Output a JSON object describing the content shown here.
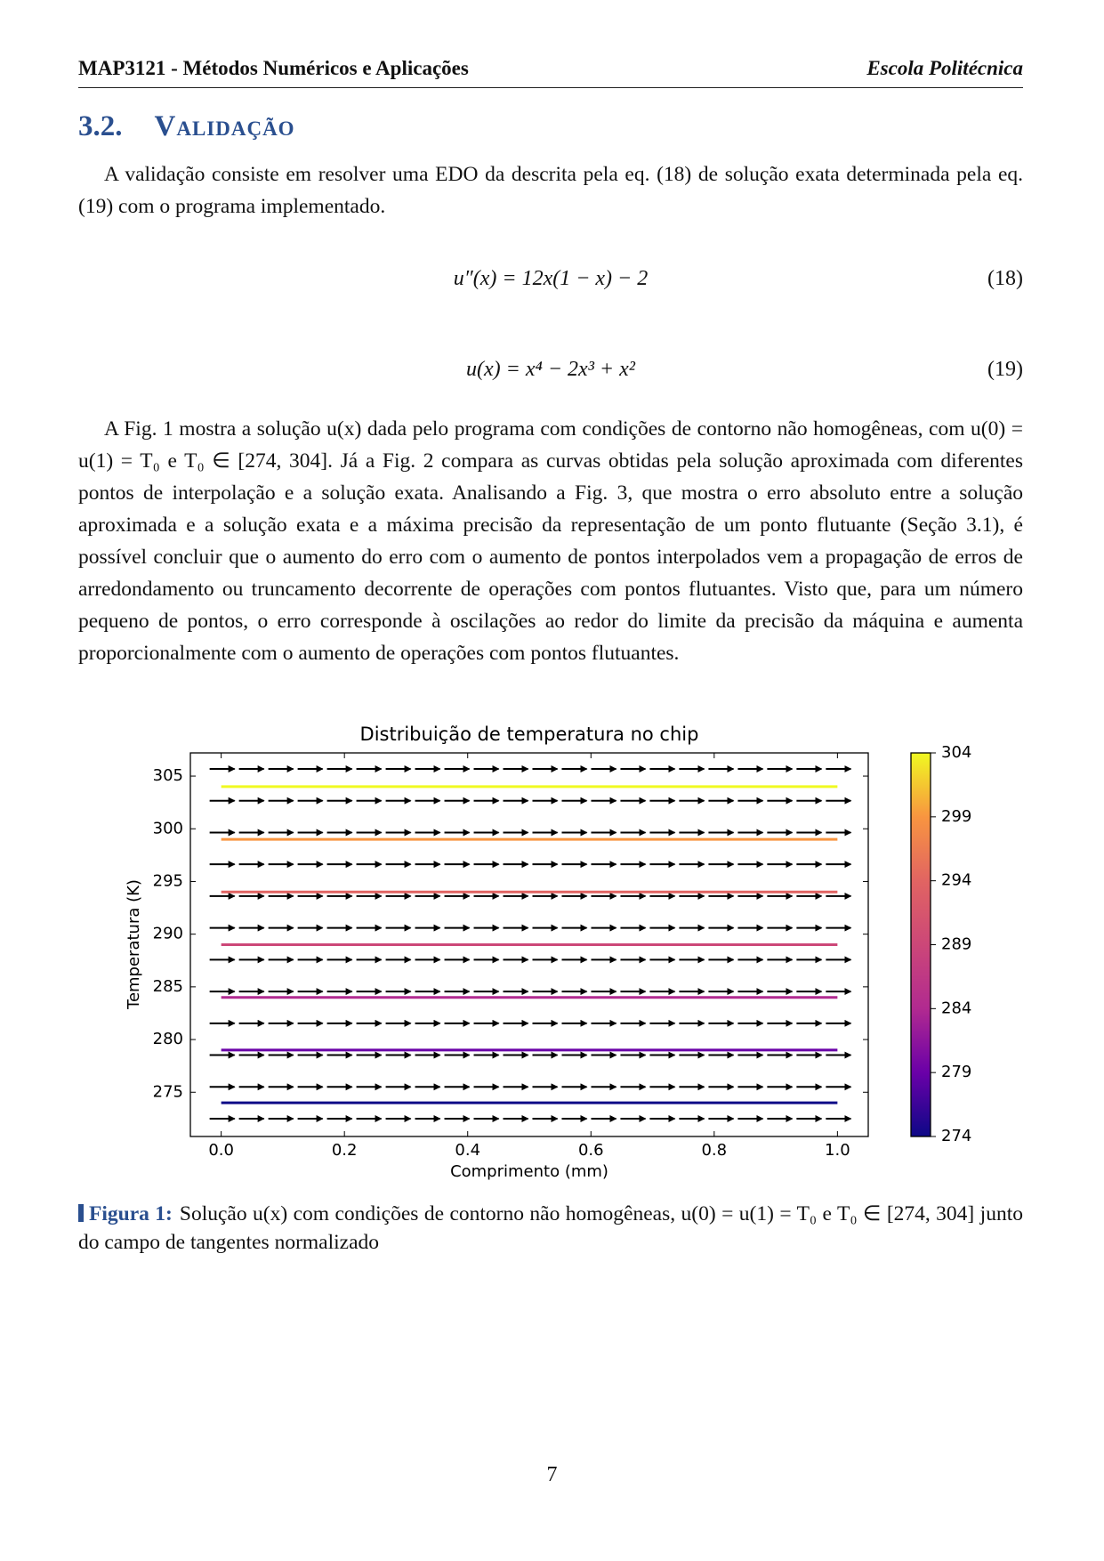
{
  "header": {
    "left": "MAP3121 - Métodos Numéricos e Aplicações",
    "right": "Escola Politécnica"
  },
  "section": {
    "number": "3.2.",
    "title": "Validação"
  },
  "paragraphs": [
    "A validação consiste em resolver uma EDO da descrita pela eq. (18) de solução exata determinada pela eq. (19) com o programa implementado.",
    "A Fig. 1 mostra a solução u(x) dada pelo programa com condições de contorno não homogêneas, com u(0) = u(1) = T₀ e T₀ ∈ [274, 304]. Já a Fig. 2 compara as curvas obtidas pela solução aproximada com diferentes pontos de interpolação e a solução exata. Analisando a Fig. 3, que mostra o erro absoluto entre a solução aproximada e a solução exata e a máxima precisão da representação de um ponto flutuante (Seção 3.1), é possível concluir que o aumento do erro com o aumento de pontos interpolados vem a propagação de erros de arredondamento ou truncamento decorrente de operações com pontos flutuantes.  Visto que, para um número pequeno de pontos, o erro corresponde à oscilações ao redor do limite da precisão da máquina e aumenta proporcionalmente com o aumento de operações com pontos flutuantes."
  ],
  "equations": [
    {
      "formula": "u″(x) = 12x(1 − x) − 2",
      "number": "(18)"
    },
    {
      "formula": "u(x) = x⁴ − 2x³ + x²",
      "number": "(19)"
    }
  ],
  "chart_data": {
    "type": "line",
    "title": "Distribuição de temperatura no chip",
    "xlabel": "Comprimento (mm)",
    "ylabel": "Temperatura (K)",
    "x": [
      0,
      1
    ],
    "series": [
      {
        "color": "#0d0887",
        "values": [
          274,
          274
        ]
      },
      {
        "color": "#6a00a8",
        "values": [
          279,
          279
        ]
      },
      {
        "color": "#b12a90",
        "values": [
          284,
          284
        ]
      },
      {
        "color": "#cc4778",
        "values": [
          289,
          289
        ]
      },
      {
        "color": "#e16462",
        "values": [
          294,
          294
        ]
      },
      {
        "color": "#f89540",
        "values": [
          299,
          299
        ]
      },
      {
        "color": "#f0f921",
        "values": [
          304,
          304
        ]
      }
    ],
    "xlim": [
      -0.05,
      1.05
    ],
    "ylim": [
      270.8,
      307.2
    ],
    "xticks": [
      {
        "value": 0,
        "label": "0.0"
      },
      0.2,
      0.4,
      0.6,
      0.8,
      {
        "value": 1,
        "label": "1.0"
      }
    ],
    "yticks": [
      275,
      280,
      285,
      290,
      295,
      300,
      305
    ],
    "colorbar": {
      "lim": [
        274,
        304
      ],
      "ticks": [
        274,
        279,
        284,
        289,
        294,
        299,
        304
      ]
    }
  },
  "caption": {
    "label": "Figura 1:",
    "text": "Solução u(x) com condições de contorno não homogêneas, u(0) = u(1) = T₀ e T₀ ∈ [274, 304] junto do campo de tangentes normalizado"
  },
  "page_number": "7"
}
